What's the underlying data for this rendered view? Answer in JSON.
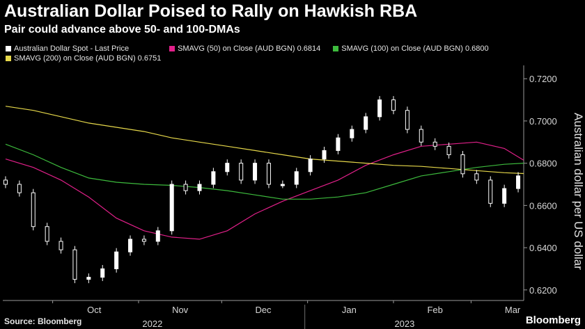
{
  "title": "Australian Dollar Poised to Rally on Hawkish RBA",
  "subtitle": "Pair could advance above 50- and 100-DMAs",
  "source": "Source: Bloomberg",
  "brand": "Bloomberg",
  "chart_data": {
    "type": "line",
    "ylabel": "Australian dollar per US dollar",
    "ylim": [
      0.615,
      0.725
    ],
    "yticks": [
      "0.7200",
      "0.7000",
      "0.6800",
      "0.6600",
      "0.6400",
      "0.6200"
    ],
    "ytick_values": [
      0.72,
      0.7,
      0.68,
      0.66,
      0.64,
      0.62
    ],
    "x_range": [
      "2022-09-13",
      "2023-03-20"
    ],
    "x_month_ticks": [
      {
        "label": "Oct",
        "date": "2022-10-01"
      },
      {
        "label": "Nov",
        "date": "2022-11-01"
      },
      {
        "label": "Dec",
        "date": "2022-12-01"
      },
      {
        "label": "Jan",
        "date": "2023-01-01"
      },
      {
        "label": "Feb",
        "date": "2023-02-01"
      },
      {
        "label": "Mar",
        "date": "2023-03-01"
      }
    ],
    "x_year_labels": [
      {
        "label": "2022",
        "date": "2022-11-06"
      },
      {
        "label": "2023",
        "date": "2023-02-05"
      }
    ],
    "year_divider": "2022-12-31",
    "grid": false,
    "legend_placement": "top-left",
    "legend_items": [
      {
        "label": "Australian Dollar Spot - Last Price",
        "color": "#ffffff"
      },
      {
        "label": "SMAVG (50)  on Close (AUD BGN) 0.6814",
        "color": "#e2208a"
      },
      {
        "label": "SMAVG (100)  on Close (AUD BGN) 0.6800",
        "color": "#3dbb3d"
      },
      {
        "label": "SMAVG (200)  on Close (AUD BGN) 0.6751",
        "color": "#e6d84a"
      }
    ],
    "series": [
      {
        "name": "Australian Dollar Spot - Last Price",
        "style": "candlestick",
        "color": "#ffffff",
        "dates": [
          "2022-09-14",
          "2022-09-19",
          "2022-09-24",
          "2022-09-29",
          "2022-10-04",
          "2022-10-09",
          "2022-10-14",
          "2022-10-19",
          "2022-10-24",
          "2022-10-29",
          "2022-11-03",
          "2022-11-08",
          "2022-11-13",
          "2022-11-18",
          "2022-11-23",
          "2022-11-28",
          "2022-12-03",
          "2022-12-08",
          "2022-12-13",
          "2022-12-18",
          "2022-12-23",
          "2022-12-28",
          "2023-01-02",
          "2023-01-07",
          "2023-01-12",
          "2023-01-17",
          "2023-01-22",
          "2023-01-27",
          "2023-02-01",
          "2023-02-06",
          "2023-02-11",
          "2023-02-16",
          "2023-02-21",
          "2023-02-26",
          "2023-03-03",
          "2023-03-08",
          "2023-03-13",
          "2023-03-18"
        ],
        "close": [
          0.67,
          0.666,
          0.65,
          0.643,
          0.639,
          0.625,
          0.626,
          0.63,
          0.638,
          0.644,
          0.643,
          0.648,
          0.67,
          0.667,
          0.67,
          0.676,
          0.68,
          0.672,
          0.68,
          0.67,
          0.67,
          0.676,
          0.682,
          0.686,
          0.692,
          0.696,
          0.702,
          0.71,
          0.705,
          0.696,
          0.69,
          0.688,
          0.684,
          0.675,
          0.672,
          0.661,
          0.668,
          0.674
        ]
      },
      {
        "name": "SMAVG (50)  on Close (AUD BGN) 0.6814",
        "style": "line",
        "color": "#e2208a",
        "dates": [
          "2022-09-14",
          "2022-09-24",
          "2022-10-04",
          "2022-10-14",
          "2022-10-24",
          "2022-11-03",
          "2022-11-13",
          "2022-11-23",
          "2022-12-03",
          "2022-12-13",
          "2022-12-23",
          "2023-01-02",
          "2023-01-12",
          "2023-01-22",
          "2023-02-01",
          "2023-02-11",
          "2023-02-21",
          "2023-03-03",
          "2023-03-13",
          "2023-03-20"
        ],
        "values": [
          0.682,
          0.678,
          0.672,
          0.664,
          0.654,
          0.648,
          0.645,
          0.644,
          0.648,
          0.656,
          0.662,
          0.667,
          0.672,
          0.679,
          0.684,
          0.688,
          0.689,
          0.69,
          0.687,
          0.6814
        ]
      },
      {
        "name": "SMAVG (100)  on Close (AUD BGN) 0.6800",
        "style": "line",
        "color": "#3dbb3d",
        "dates": [
          "2022-09-14",
          "2022-09-24",
          "2022-10-04",
          "2022-10-14",
          "2022-10-24",
          "2022-11-03",
          "2022-11-13",
          "2022-11-23",
          "2022-12-03",
          "2022-12-13",
          "2022-12-23",
          "2023-01-02",
          "2023-01-12",
          "2023-01-22",
          "2023-02-01",
          "2023-02-11",
          "2023-02-21",
          "2023-03-03",
          "2023-03-13",
          "2023-03-20"
        ],
        "values": [
          0.689,
          0.684,
          0.678,
          0.673,
          0.671,
          0.67,
          0.6695,
          0.6685,
          0.667,
          0.665,
          0.663,
          0.663,
          0.664,
          0.666,
          0.67,
          0.674,
          0.676,
          0.678,
          0.6795,
          0.68
        ]
      },
      {
        "name": "SMAVG (200)  on Close (AUD BGN) 0.6751",
        "style": "line",
        "color": "#e6d84a",
        "dates": [
          "2022-09-14",
          "2022-09-24",
          "2022-10-04",
          "2022-10-14",
          "2022-10-24",
          "2022-11-03",
          "2022-11-13",
          "2022-11-23",
          "2022-12-03",
          "2022-12-13",
          "2022-12-23",
          "2023-01-02",
          "2023-01-12",
          "2023-01-22",
          "2023-02-01",
          "2023-02-11",
          "2023-02-21",
          "2023-03-03",
          "2023-03-13",
          "2023-03-20"
        ],
        "values": [
          0.707,
          0.705,
          0.702,
          0.699,
          0.697,
          0.695,
          0.692,
          0.69,
          0.688,
          0.686,
          0.684,
          0.682,
          0.681,
          0.68,
          0.679,
          0.6785,
          0.6775,
          0.6765,
          0.6755,
          0.6751
        ]
      }
    ]
  }
}
